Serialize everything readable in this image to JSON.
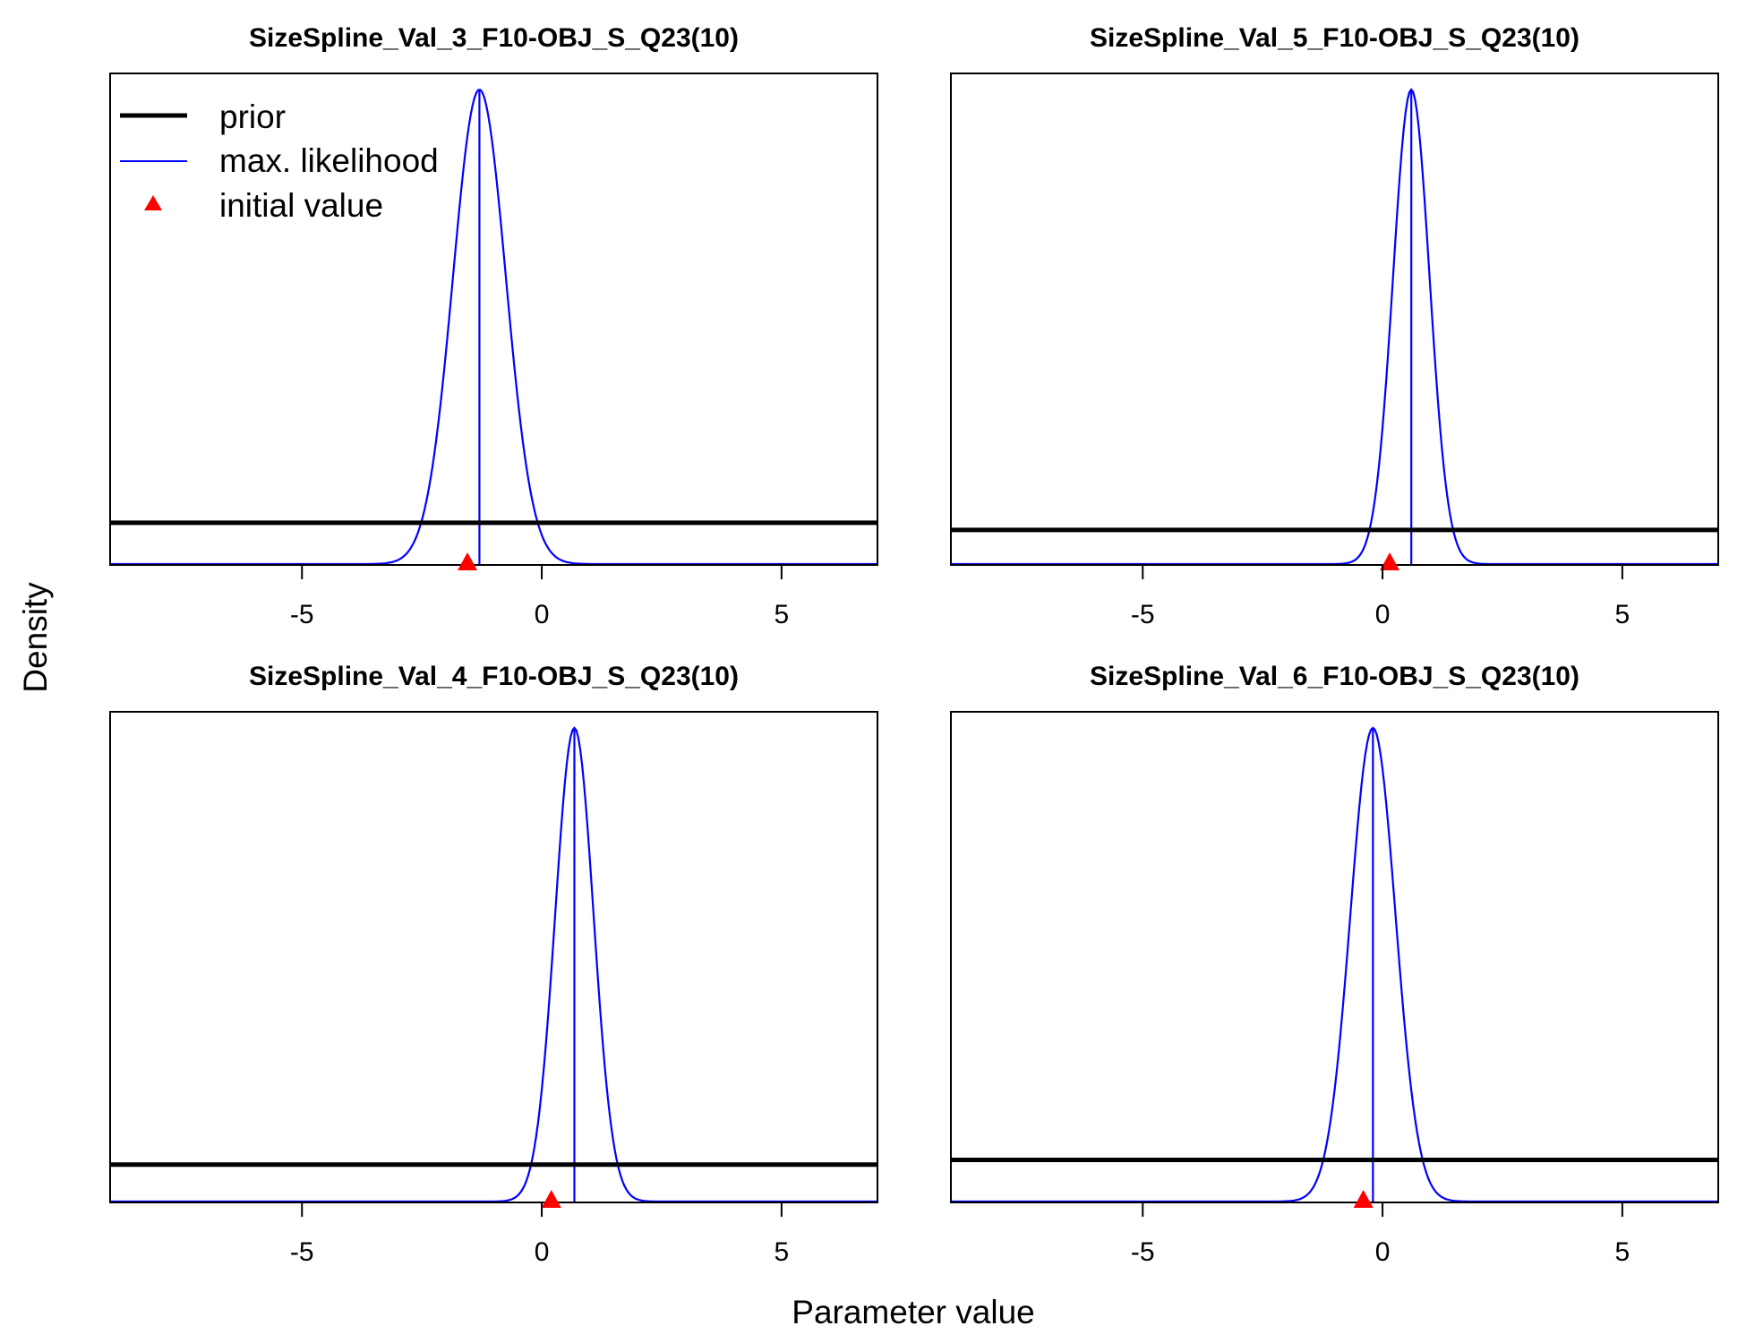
{
  "figure": {
    "ylabel": "Density",
    "xlabel": "Parameter value"
  },
  "legend": {
    "prior_label": "prior",
    "mle_label": "max. likelihood",
    "init_label": "initial value"
  },
  "colors": {
    "prior": "#000000",
    "mle": "#0000ff",
    "init": "#ff0000"
  },
  "chart_data": [
    {
      "type": "line",
      "title": "SizeSpline_Val_3_F10-OBJ_S_Q23(10)",
      "xlim": [
        -9,
        7
      ],
      "xticks": [
        -5,
        0,
        5
      ],
      "mle_mean": -1.3,
      "mle_sd": 0.55,
      "prior_level": 0.087,
      "init_value": -1.55,
      "show_legend": true
    },
    {
      "type": "line",
      "title": "SizeSpline_Val_5_F10-OBJ_S_Q23(10)",
      "xlim": [
        -9,
        7
      ],
      "xticks": [
        -5,
        0,
        5
      ],
      "mle_mean": 0.6,
      "mle_sd": 0.38,
      "prior_level": 0.072,
      "init_value": 0.15,
      "show_legend": false
    },
    {
      "type": "line",
      "title": "SizeSpline_Val_4_F10-OBJ_S_Q23(10)",
      "xlim": [
        -9,
        7
      ],
      "xticks": [
        -5,
        0,
        5
      ],
      "mle_mean": 0.68,
      "mle_sd": 0.4,
      "prior_level": 0.078,
      "init_value": 0.2,
      "show_legend": false
    },
    {
      "type": "line",
      "title": "SizeSpline_Val_6_F10-OBJ_S_Q23(10)",
      "xlim": [
        -9,
        7
      ],
      "xticks": [
        -5,
        0,
        5
      ],
      "mle_mean": -0.2,
      "mle_sd": 0.47,
      "prior_level": 0.088,
      "init_value": -0.4,
      "show_legend": false
    }
  ]
}
